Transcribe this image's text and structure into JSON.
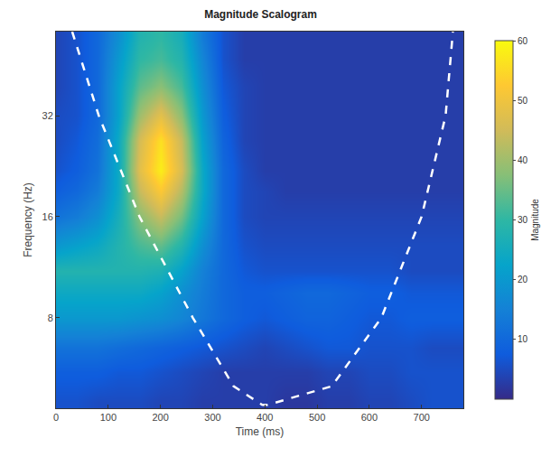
{
  "chart_data": {
    "type": "heatmap",
    "title": "Magnitude Scalogram",
    "x_label": "Time (ms)",
    "y_label": "Frequency (Hz)",
    "colorbar_label": "Magnitude",
    "log": "y",
    "xlim": [
      0,
      780
    ],
    "xticks": [
      0,
      100,
      200,
      300,
      400,
      500,
      600,
      700
    ],
    "ylim": [
      4.3,
      57
    ],
    "yticks": [
      8,
      16,
      32
    ],
    "zlim": [
      0,
      60
    ],
    "zticks": [
      10,
      20,
      30,
      40,
      50,
      60
    ],
    "x": [
      0,
      40,
      80,
      120,
      160,
      200,
      240,
      280,
      320,
      360,
      400,
      440,
      480,
      520,
      560,
      600,
      640,
      680,
      720,
      760
    ],
    "y": [
      4.5,
      5.5,
      6.5,
      8,
      9.5,
      11,
      13,
      16,
      19,
      22,
      27,
      32,
      39,
      47,
      55
    ],
    "z": [
      [
        6,
        6,
        5,
        5,
        5,
        4,
        4,
        3,
        3,
        3,
        3,
        2,
        2,
        3,
        3,
        4,
        4,
        5,
        6,
        6
      ],
      [
        8,
        8,
        8,
        7,
        7,
        6,
        5,
        4,
        3,
        3,
        3,
        3,
        3,
        4,
        4,
        5,
        5,
        6,
        6,
        6
      ],
      [
        12,
        12,
        12,
        11,
        10,
        9,
        8,
        7,
        6,
        5,
        4,
        5,
        6,
        7,
        7,
        6,
        6,
        6,
        5,
        5
      ],
      [
        20,
        20,
        20,
        20,
        19,
        18,
        16,
        13,
        10,
        8,
        7,
        8,
        9,
        9,
        8,
        7,
        7,
        8,
        8,
        8
      ],
      [
        24,
        24,
        24,
        24,
        24,
        22,
        18,
        14,
        10,
        8,
        8,
        9,
        10,
        10,
        9,
        8,
        8,
        7,
        7,
        7
      ],
      [
        28,
        28,
        28,
        28,
        28,
        27,
        22,
        15,
        10,
        7,
        6,
        6,
        6,
        6,
        6,
        6,
        6,
        5,
        5,
        5
      ],
      [
        20,
        22,
        24,
        28,
        32,
        34,
        28,
        18,
        10,
        6,
        5,
        5,
        5,
        5,
        5,
        5,
        5,
        5,
        5,
        5
      ],
      [
        12,
        14,
        18,
        26,
        38,
        44,
        36,
        22,
        10,
        5,
        4,
        4,
        4,
        4,
        4,
        4,
        4,
        4,
        4,
        4
      ],
      [
        8,
        10,
        14,
        24,
        44,
        52,
        42,
        24,
        10,
        5,
        4,
        3,
        3,
        3,
        3,
        3,
        3,
        3,
        3,
        3
      ],
      [
        6,
        8,
        12,
        24,
        48,
        58,
        46,
        24,
        10,
        5,
        3,
        3,
        3,
        3,
        3,
        3,
        3,
        3,
        3,
        3
      ],
      [
        5,
        7,
        11,
        24,
        46,
        56,
        44,
        22,
        9,
        4,
        3,
        3,
        3,
        3,
        3,
        3,
        3,
        3,
        3,
        3
      ],
      [
        5,
        6,
        10,
        22,
        40,
        48,
        38,
        20,
        8,
        4,
        3,
        3,
        3,
        3,
        3,
        3,
        3,
        3,
        3,
        3
      ],
      [
        4,
        6,
        10,
        22,
        34,
        38,
        32,
        18,
        7,
        4,
        3,
        3,
        3,
        3,
        3,
        3,
        3,
        3,
        3,
        3
      ],
      [
        4,
        6,
        10,
        20,
        30,
        32,
        28,
        16,
        6,
        3,
        3,
        3,
        3,
        3,
        3,
        3,
        3,
        3,
        3,
        3
      ],
      [
        4,
        6,
        10,
        18,
        28,
        30,
        26,
        14,
        6,
        3,
        3,
        3,
        3,
        3,
        3,
        3,
        3,
        3,
        3,
        3
      ]
    ],
    "series": [
      {
        "type": "line",
        "line_style": "dashed",
        "color": "#ffffff",
        "x": [
          31,
          82,
          160,
          262,
          340,
          395,
          405,
          528,
          623,
          700,
          746,
          760
        ],
        "values": [
          57,
          32,
          16,
          8,
          5,
          4.4,
          4.4,
          5,
          8,
          16,
          32,
          57
        ]
      }
    ]
  }
}
